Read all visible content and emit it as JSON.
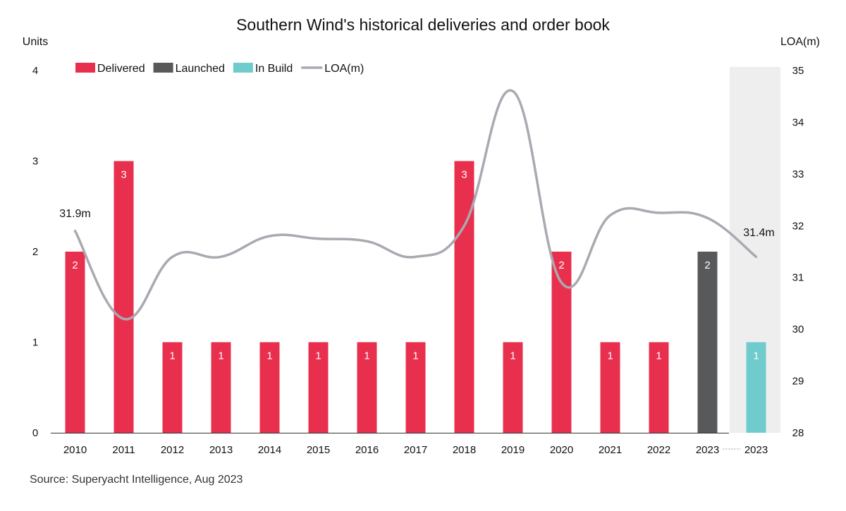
{
  "title": "Southern Wind's historical deliveries and order book",
  "source": "Source: Superyacht Intelligence, Aug 2023",
  "chart_data": {
    "type": "bar",
    "title": "Southern Wind's historical deliveries and order book",
    "ylabel": "Units",
    "y2label": "LOA(m)",
    "ylim": [
      0,
      4
    ],
    "y2lim": [
      28,
      35
    ],
    "yticks": [
      "0",
      "1",
      "2",
      "3",
      "4"
    ],
    "y2ticks": [
      "28",
      "29",
      "30",
      "31",
      "32",
      "33",
      "34",
      "35"
    ],
    "categories": [
      "2010",
      "2011",
      "2012",
      "2013",
      "2014",
      "2015",
      "2016",
      "2017",
      "2018",
      "2019",
      "2020",
      "2021",
      "2022",
      "2023",
      "2023"
    ],
    "series": [
      {
        "name": "Delivered",
        "color": "#e8304e",
        "values": [
          2,
          3,
          1,
          1,
          1,
          1,
          1,
          1,
          3,
          1,
          2,
          1,
          1,
          null,
          null
        ]
      },
      {
        "name": "Launched",
        "color": "#58595b",
        "values": [
          null,
          null,
          null,
          null,
          null,
          null,
          null,
          null,
          null,
          null,
          null,
          null,
          null,
          2,
          null
        ]
      },
      {
        "name": "In Build",
        "color": "#70cbcc",
        "values": [
          null,
          null,
          null,
          null,
          null,
          null,
          null,
          null,
          null,
          null,
          null,
          null,
          null,
          null,
          1
        ]
      },
      {
        "name": "LOA(m)",
        "type": "line",
        "axis": "right",
        "color": "#a9a9b1",
        "values": [
          31.9,
          30.2,
          31.4,
          31.4,
          31.8,
          31.75,
          31.7,
          31.4,
          32.0,
          34.6,
          30.9,
          32.2,
          32.25,
          32.15,
          31.4
        ]
      }
    ],
    "annotations": [
      "31.9m",
      "31.4m"
    ],
    "legend": "top-left",
    "highlight_category_index": 14,
    "grid": false
  }
}
